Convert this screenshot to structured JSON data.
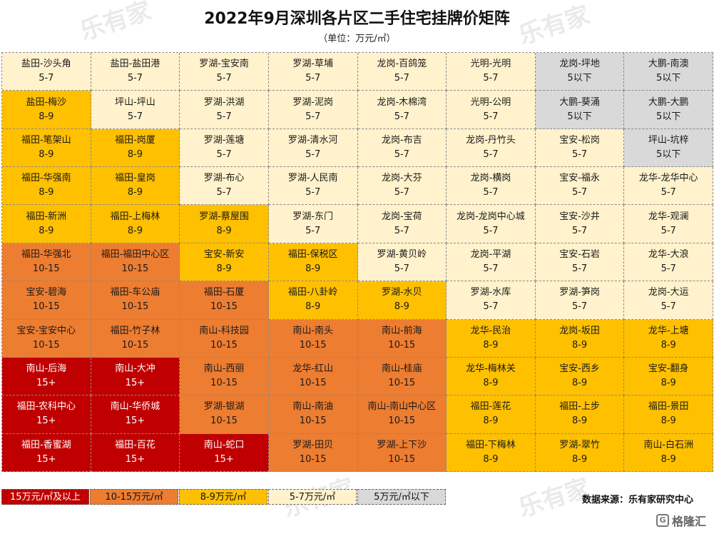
{
  "title": "2022年9月深圳各片区二手住宅挂牌价矩阵",
  "subtitle": "（单位：万元/㎡）",
  "colors": {
    "15+": "#c00000",
    "10-15": "#ed7d31",
    "8-9": "#ffc000",
    "5-7": "#fff2cc",
    "5以下": "#d9d9d9"
  },
  "legend": [
    {
      "label": "15万元/㎡及以上",
      "tier": "15+"
    },
    {
      "label": "10-15万元/㎡",
      "tier": "10-15"
    },
    {
      "label": "8-9万元/㎡",
      "tier": "8-9"
    },
    {
      "label": "5-7万元/㎡",
      "tier": "5-7"
    },
    {
      "label": "5万元/㎡以下",
      "tier": "5以下"
    }
  ],
  "source": "数据来源：乐有家研究中心",
  "watermark": "乐有家",
  "brand": "格隆汇",
  "chart_data": {
    "type": "table",
    "columns": 8,
    "cells": [
      [
        {
          "name": "盐田-沙头角",
          "price": "5-7"
        },
        {
          "name": "盐田-盐田港",
          "price": "5-7"
        },
        {
          "name": "罗湖-宝安南",
          "price": "5-7"
        },
        {
          "name": "罗湖-草埔",
          "price": "5-7"
        },
        {
          "name": "龙岗-百鸽笼",
          "price": "5-7"
        },
        {
          "name": "光明-光明",
          "price": "5-7"
        },
        {
          "name": "龙岗-坪地",
          "price": "5以下"
        },
        {
          "name": "大鹏-南澳",
          "price": "5以下"
        }
      ],
      [
        {
          "name": "盐田-梅沙",
          "price": "8-9"
        },
        {
          "name": "坪山-坪山",
          "price": "5-7"
        },
        {
          "name": "罗湖-洪湖",
          "price": "5-7"
        },
        {
          "name": "罗湖-泥岗",
          "price": "5-7"
        },
        {
          "name": "龙岗-木棉湾",
          "price": "5-7"
        },
        {
          "name": "光明-公明",
          "price": "5-7"
        },
        {
          "name": "大鹏-葵涌",
          "price": "5以下"
        },
        {
          "name": "大鹏-大鹏",
          "price": "5以下"
        }
      ],
      [
        {
          "name": "福田-笔架山",
          "price": "8-9"
        },
        {
          "name": "福田-岗厦",
          "price": "8-9"
        },
        {
          "name": "罗湖-莲塘",
          "price": "5-7"
        },
        {
          "name": "罗湖-清水河",
          "price": "5-7"
        },
        {
          "name": "龙岗-布吉",
          "price": "5-7"
        },
        {
          "name": "龙岗-丹竹头",
          "price": "5-7"
        },
        {
          "name": "宝安-松岗",
          "price": "5-7"
        },
        {
          "name": "坪山-坑梓",
          "price": "5以下"
        }
      ],
      [
        {
          "name": "福田-华强南",
          "price": "8-9"
        },
        {
          "name": "福田-皇岗",
          "price": "8-9"
        },
        {
          "name": "罗湖-布心",
          "price": "5-7"
        },
        {
          "name": "罗湖-人民南",
          "price": "5-7"
        },
        {
          "name": "龙岗-大芬",
          "price": "5-7"
        },
        {
          "name": "龙岗-横岗",
          "price": "5-7"
        },
        {
          "name": "宝安-福永",
          "price": "5-7"
        },
        {
          "name": "龙华-龙华中心",
          "price": "5-7"
        }
      ],
      [
        {
          "name": "福田-新洲",
          "price": "8-9"
        },
        {
          "name": "福田-上梅林",
          "price": "8-9"
        },
        {
          "name": "罗湖-蔡屋围",
          "price": "8-9"
        },
        {
          "name": "罗湖-东门",
          "price": "5-7"
        },
        {
          "name": "龙岗-宝荷",
          "price": "5-7"
        },
        {
          "name": "龙岗-龙岗中心城",
          "price": "5-7"
        },
        {
          "name": "宝安-沙井",
          "price": "5-7"
        },
        {
          "name": "龙华-观澜",
          "price": "5-7"
        }
      ],
      [
        {
          "name": "福田-华强北",
          "price": "10-15"
        },
        {
          "name": "福田-福田中心区",
          "price": "10-15"
        },
        {
          "name": "宝安-新安",
          "price": "8-9"
        },
        {
          "name": "福田-保税区",
          "price": "8-9"
        },
        {
          "name": "罗湖-黄贝岭",
          "price": "5-7"
        },
        {
          "name": "龙岗-平湖",
          "price": "5-7"
        },
        {
          "name": "宝安-石岩",
          "price": "5-7"
        },
        {
          "name": "龙华-大浪",
          "price": "5-7"
        }
      ],
      [
        {
          "name": "宝安-碧海",
          "price": "10-15"
        },
        {
          "name": "福田-车公庙",
          "price": "10-15"
        },
        {
          "name": "福田-石厦",
          "price": "10-15"
        },
        {
          "name": "福田-八卦岭",
          "price": "8-9"
        },
        {
          "name": "罗湖-水贝",
          "price": "8-9"
        },
        {
          "name": "罗湖-水库",
          "price": "5-7"
        },
        {
          "name": "罗湖-笋岗",
          "price": "5-7"
        },
        {
          "name": "龙岗-大运",
          "price": "5-7"
        }
      ],
      [
        {
          "name": "宝安-宝安中心",
          "price": "10-15"
        },
        {
          "name": "福田-竹子林",
          "price": "10-15"
        },
        {
          "name": "南山-科技园",
          "price": "10-15"
        },
        {
          "name": "南山-南头",
          "price": "10-15"
        },
        {
          "name": "南山-前海",
          "price": "10-15"
        },
        {
          "name": "龙华-民治",
          "price": "8-9"
        },
        {
          "name": "龙岗-坂田",
          "price": "8-9"
        },
        {
          "name": "龙华-上塘",
          "price": "8-9"
        }
      ],
      [
        {
          "name": "南山-后海",
          "price": "15+"
        },
        {
          "name": "南山-大冲",
          "price": "15+"
        },
        {
          "name": "南山-西丽",
          "price": "10-15"
        },
        {
          "name": "龙华-红山",
          "price": "10-15"
        },
        {
          "name": "南山-桂庙",
          "price": "10-15"
        },
        {
          "name": "龙华-梅林关",
          "price": "8-9"
        },
        {
          "name": "宝安-西乡",
          "price": "8-9"
        },
        {
          "name": "宝安-翻身",
          "price": "8-9"
        }
      ],
      [
        {
          "name": "福田-农科中心",
          "price": "15+"
        },
        {
          "name": "南山-华侨城",
          "price": "15+"
        },
        {
          "name": "罗湖-银湖",
          "price": "10-15"
        },
        {
          "name": "南山-南油",
          "price": "10-15"
        },
        {
          "name": "南山-南山中心区",
          "price": "10-15"
        },
        {
          "name": "福田-莲花",
          "price": "8-9"
        },
        {
          "name": "福田-上步",
          "price": "8-9"
        },
        {
          "name": "福田-景田",
          "price": "8-9"
        }
      ],
      [
        {
          "name": "福田-香蜜湖",
          "price": "15+"
        },
        {
          "name": "福田-百花",
          "price": "15+"
        },
        {
          "name": "南山-蛇口",
          "price": "15+"
        },
        {
          "name": "罗湖-田贝",
          "price": "10-15"
        },
        {
          "name": "罗湖-上下沙",
          "price": "10-15"
        },
        {
          "name": "福田-下梅林",
          "price": "8-9"
        },
        {
          "name": "罗湖-翠竹",
          "price": "8-9"
        },
        {
          "name": "南山-白石洲",
          "price": "8-9"
        }
      ]
    ]
  }
}
